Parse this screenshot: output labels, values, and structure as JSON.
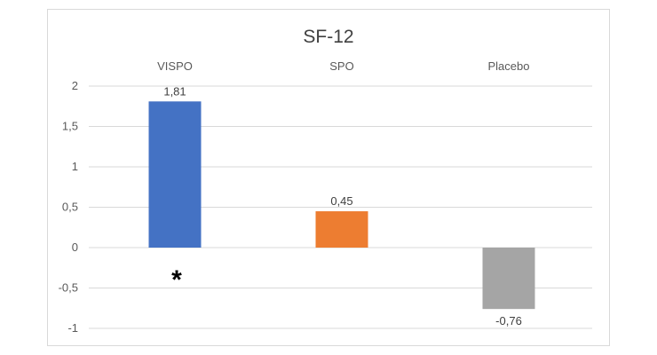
{
  "chart_data": {
    "type": "bar",
    "title": "SF-12",
    "categories": [
      "VISPO",
      "SPO",
      "Placebo"
    ],
    "values": [
      1.81,
      0.45,
      -0.76
    ],
    "data_labels": [
      "1,81",
      "0,45",
      "-0,76"
    ],
    "colors": [
      "#4472c4",
      "#ed7d31",
      "#a5a5a5"
    ],
    "ylim": [
      -1,
      2
    ],
    "y_ticks": [
      2,
      1.5,
      1,
      0.5,
      0,
      -0.5,
      -1
    ],
    "y_tick_labels": [
      "2",
      "1,5",
      "1",
      "0,5",
      "0",
      "-0,5",
      "-1"
    ],
    "category_labels_position": "top",
    "grid": true,
    "legend": false,
    "annotation": "*"
  }
}
